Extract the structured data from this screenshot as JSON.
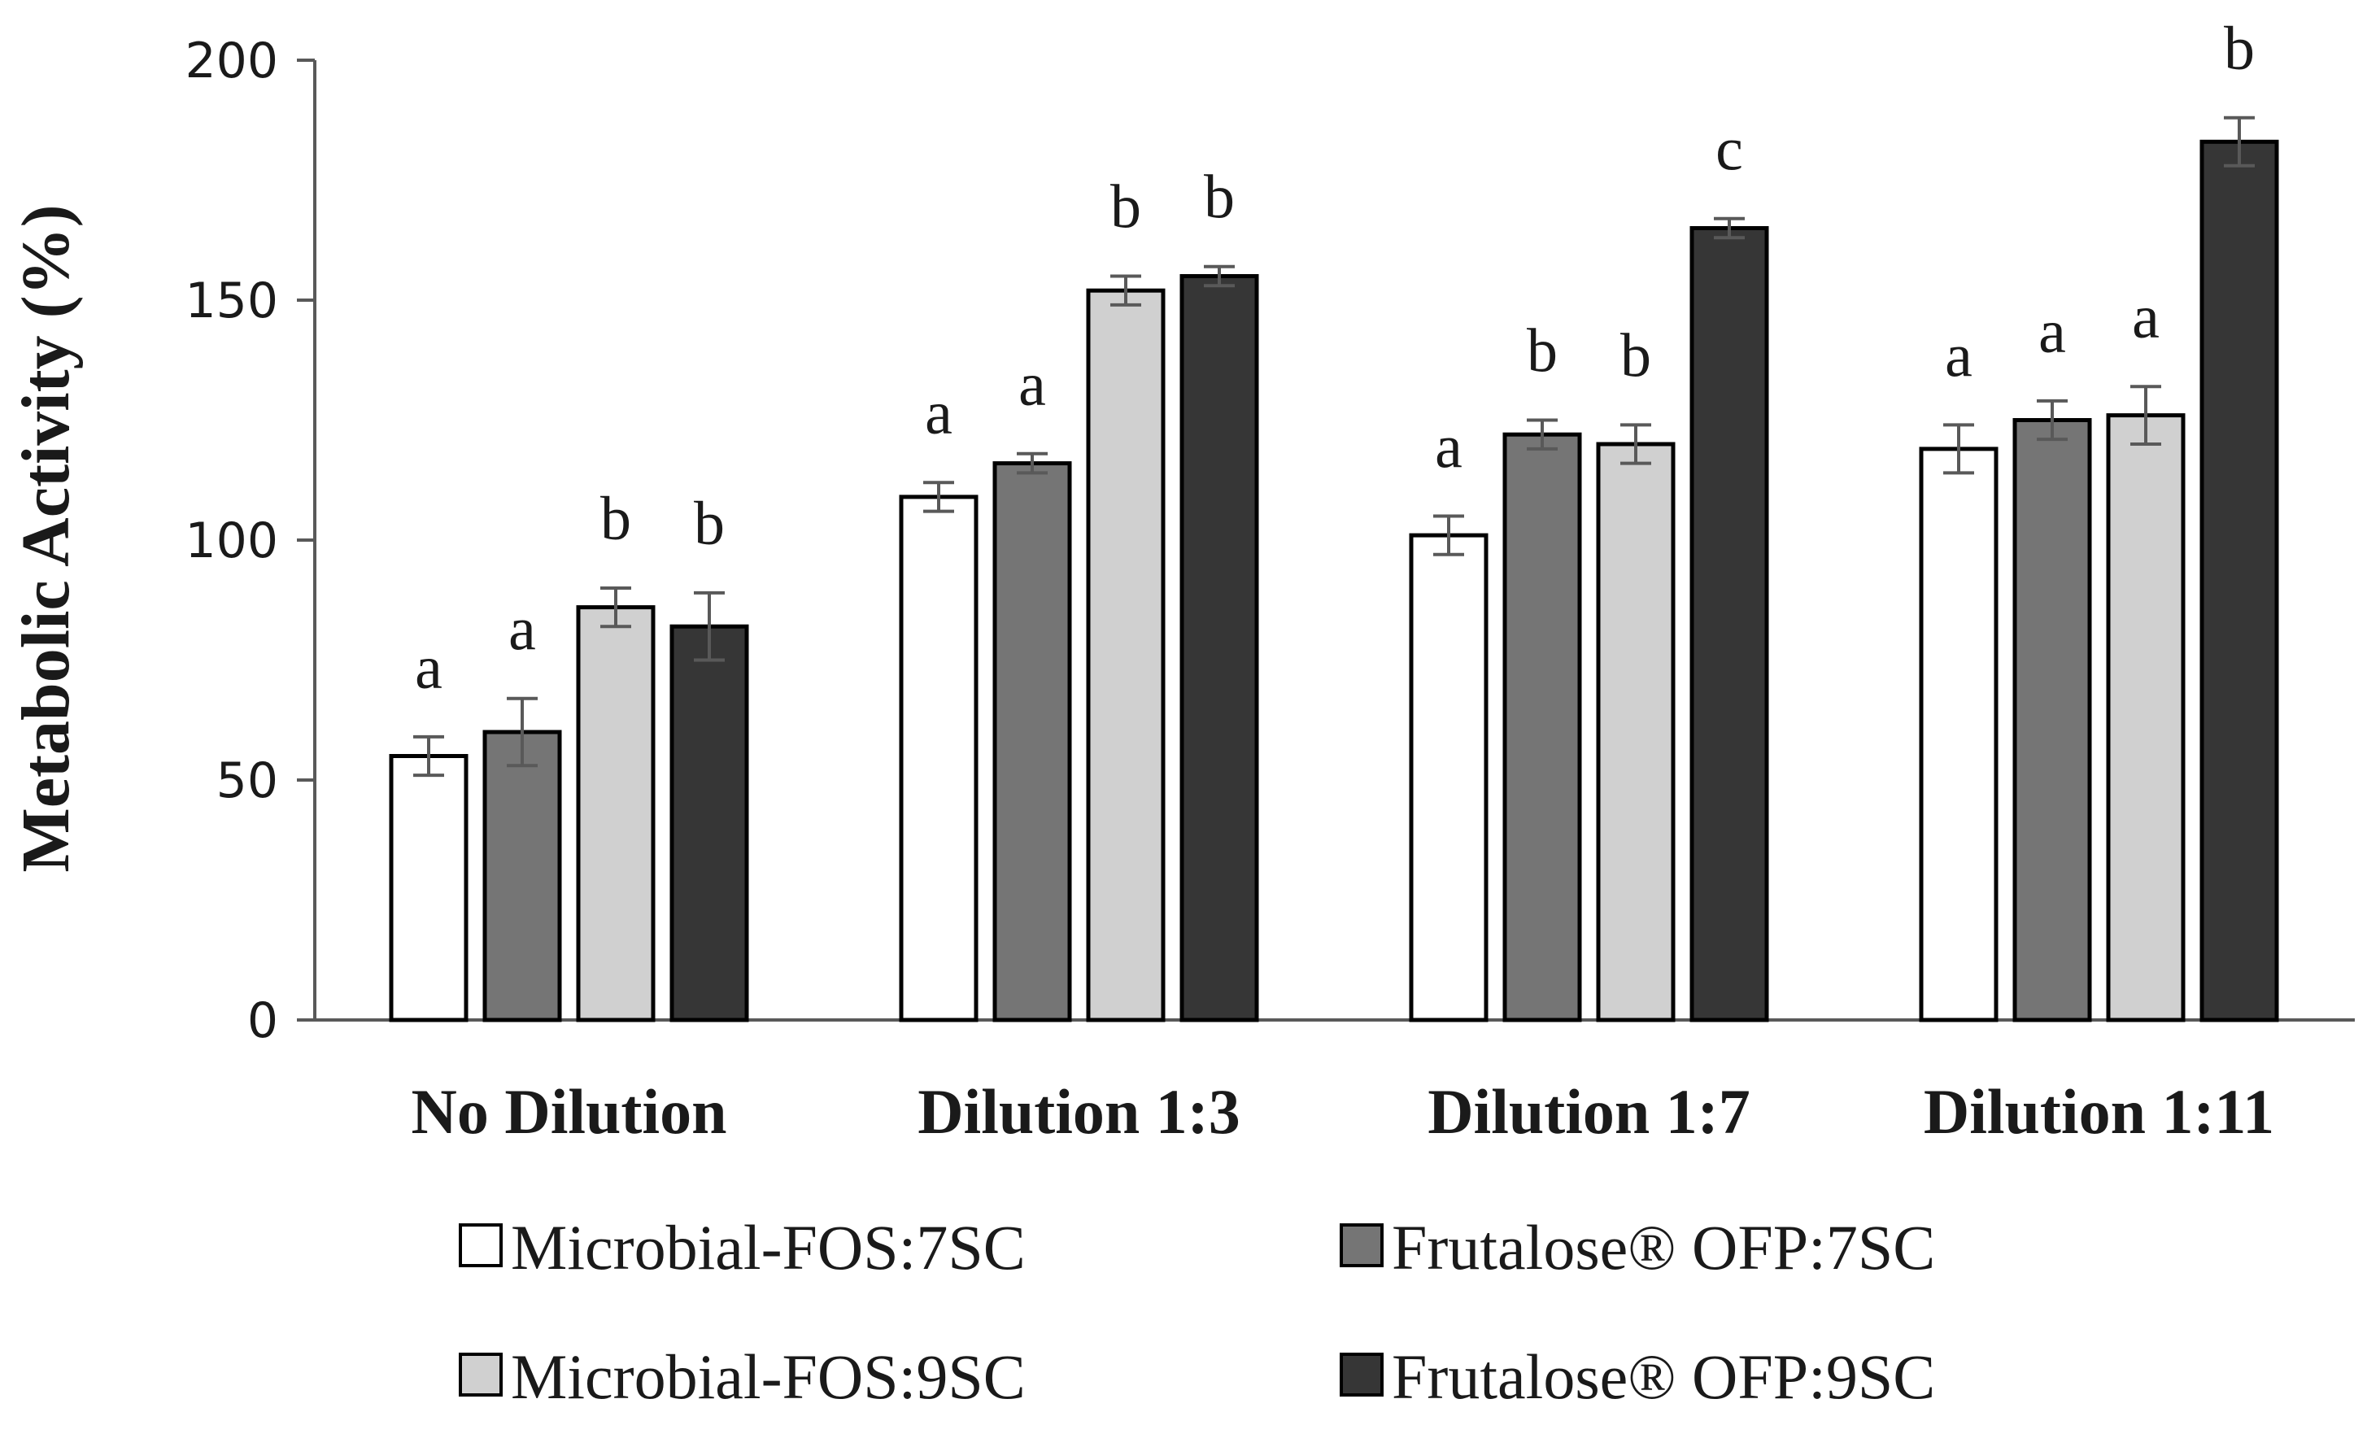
{
  "chart_data": {
    "type": "bar",
    "title": "",
    "xlabel": "",
    "ylabel": "Metabolic Activity (%)",
    "ylim": [
      0,
      200
    ],
    "yticks": [
      0,
      50,
      100,
      150,
      200
    ],
    "grid": false,
    "legend_position": "bottom",
    "categories": [
      "No Dilution",
      "Dilution 1:3",
      "Dilution 1:7",
      "Dilution 1:11"
    ],
    "series": [
      {
        "name": "Microbial-FOS:7SC",
        "color": "#ffffff",
        "values": [
          55,
          109,
          101,
          119
        ],
        "errors": [
          4,
          3,
          4,
          5
        ],
        "significance": [
          "a",
          "a",
          "a",
          "a"
        ]
      },
      {
        "name": "Frutalose® OFP:7SC",
        "color": "#757575",
        "values": [
          60,
          116,
          122,
          125
        ],
        "errors": [
          7,
          2,
          3,
          4
        ],
        "significance": [
          "a",
          "a",
          "b",
          "a"
        ]
      },
      {
        "name": "Microbial-FOS:9SC",
        "color": "#d0d0d0",
        "values": [
          86,
          152,
          120,
          126
        ],
        "errors": [
          4,
          3,
          4,
          6
        ],
        "significance": [
          "b",
          "b",
          "b",
          "a"
        ]
      },
      {
        "name": "Frutalose® OFP:9SC",
        "color": "#363636",
        "values": [
          82,
          155,
          165,
          183
        ],
        "errors": [
          7,
          2,
          2,
          5
        ],
        "significance": [
          "b",
          "b",
          "c",
          "b"
        ]
      }
    ]
  }
}
